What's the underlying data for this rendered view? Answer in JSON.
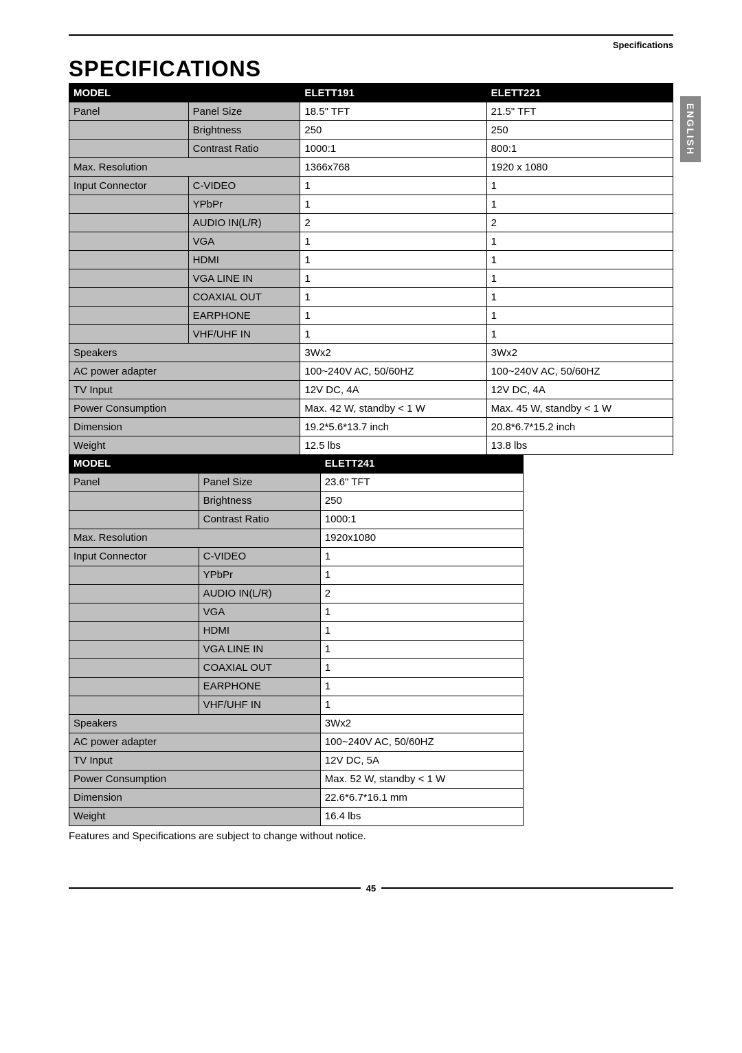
{
  "header_label": "Specifications",
  "side_tab": "ENGLISH",
  "title": "SPECIFICATIONS",
  "footnote": "Features and Specifications are subject to change without notice.",
  "page_number": "45",
  "table1": {
    "header": {
      "model": "MODEL",
      "c1": "ELETT191",
      "c2": "ELETT221"
    },
    "rows": [
      {
        "a": "Panel",
        "b": "Panel Size",
        "c1": "18.5\" TFT",
        "c2": "21.5\" TFT"
      },
      {
        "a": "",
        "b": "Brightness",
        "c1": "250",
        "c2": "250"
      },
      {
        "a": "",
        "b": "Contrast Ratio",
        "c1": "1000:1",
        "c2": "800:1"
      },
      {
        "span": true,
        "a": "Max. Resolution",
        "c1": "1366x768",
        "c2": "1920 x 1080"
      },
      {
        "a": "Input Connector",
        "b": "C-VIDEO",
        "c1": "1",
        "c2": "1"
      },
      {
        "a": "",
        "b": "YPbPr",
        "c1": "1",
        "c2": "1"
      },
      {
        "a": "",
        "b": "AUDIO IN(L/R)",
        "c1": "2",
        "c2": "2"
      },
      {
        "a": "",
        "b": "VGA",
        "c1": "1",
        "c2": "1"
      },
      {
        "a": "",
        "b": "HDMI",
        "c1": "1",
        "c2": "1"
      },
      {
        "a": "",
        "b": "VGA LINE IN",
        "c1": "1",
        "c2": "1"
      },
      {
        "a": "",
        "b": "COAXIAL OUT",
        "c1": "1",
        "c2": "1"
      },
      {
        "a": "",
        "b": "EARPHONE",
        "c1": "1",
        "c2": "1"
      },
      {
        "a": "",
        "b": "VHF/UHF IN",
        "c1": "1",
        "c2": "1"
      },
      {
        "span": true,
        "a": "Speakers",
        "c1": "3Wx2",
        "c2": "3Wx2"
      },
      {
        "span": true,
        "a": "AC power adapter",
        "c1": "100~240V AC, 50/60HZ",
        "c2": "100~240V AC, 50/60HZ"
      },
      {
        "span": true,
        "a": "TV Input",
        "c1": "12V DC, 4A",
        "c2": "12V DC, 4A"
      },
      {
        "span": true,
        "a": "Power Consumption",
        "c1": "Max. 42 W, standby < 1 W",
        "c2": "Max. 45 W, standby < 1 W"
      },
      {
        "span": true,
        "a": "Dimension",
        "c1": "19.2*5.6*13.7 inch",
        "c2": "20.8*6.7*15.2 inch"
      },
      {
        "span": true,
        "a": "Weight",
        "c1": "12.5 lbs",
        "c2": "13.8 lbs"
      }
    ]
  },
  "table2": {
    "header": {
      "model": "MODEL",
      "c1": "ELETT241"
    },
    "rows": [
      {
        "a": "Panel",
        "b": "Panel Size",
        "c1": "23.6\" TFT"
      },
      {
        "a": "",
        "b": "Brightness",
        "c1": "250"
      },
      {
        "a": "",
        "b": "Contrast Ratio",
        "c1": "1000:1"
      },
      {
        "span": true,
        "a": "Max. Resolution",
        "c1": "1920x1080"
      },
      {
        "a": "Input Connector",
        "b": "C-VIDEO",
        "c1": "1"
      },
      {
        "a": "",
        "b": "YPbPr",
        "c1": "1"
      },
      {
        "a": "",
        "b": "AUDIO IN(L/R)",
        "c1": "2"
      },
      {
        "a": "",
        "b": "VGA",
        "c1": "1"
      },
      {
        "a": "",
        "b": "HDMI",
        "c1": "1"
      },
      {
        "a": "",
        "b": "VGA LINE IN",
        "c1": "1"
      },
      {
        "a": "",
        "b": "COAXIAL OUT",
        "c1": "1"
      },
      {
        "a": "",
        "b": "EARPHONE",
        "c1": "1"
      },
      {
        "a": "",
        "b": "VHF/UHF IN",
        "c1": "1"
      },
      {
        "span": true,
        "a": "Speakers",
        "c1": "3Wx2"
      },
      {
        "span": true,
        "a": "AC power adapter",
        "c1": "100~240V AC, 50/60HZ"
      },
      {
        "span": true,
        "a": "TV Input",
        "c1": "12V DC, 5A"
      },
      {
        "span": true,
        "a": "Power Consumption",
        "c1": "Max. 52 W, standby < 1 W"
      },
      {
        "span": true,
        "a": "Dimension",
        "c1": "22.6*6.7*16.1 mm"
      },
      {
        "span": true,
        "a": "Weight",
        "c1": "16.4 lbs"
      }
    ]
  }
}
